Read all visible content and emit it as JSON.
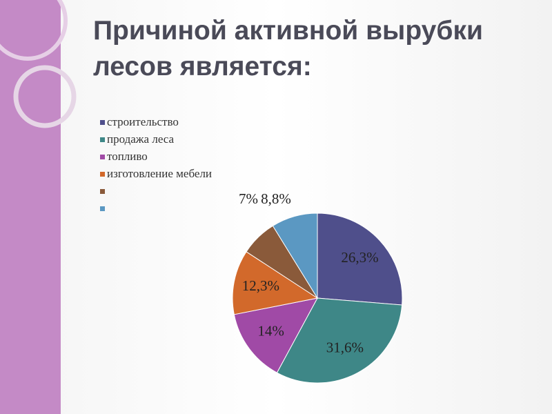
{
  "chart_data": {
    "type": "pie",
    "title": "Причиной активной вырубки лесов является:",
    "categories": [
      "строительство",
      "продажа леса",
      "топливо",
      "изготовление мебели",
      null,
      null
    ],
    "values": [
      26.3,
      31.6,
      14,
      12.3,
      7,
      8.8
    ],
    "value_labels": [
      "26,3%",
      "31,6%",
      "14%",
      "12,3%",
      "7%",
      "8,8%"
    ],
    "colors": [
      "#4f4f8b",
      "#3e8787",
      "#a04aa6",
      "#d2692b",
      "#8a5a3a",
      "#5b98c2"
    ]
  }
}
